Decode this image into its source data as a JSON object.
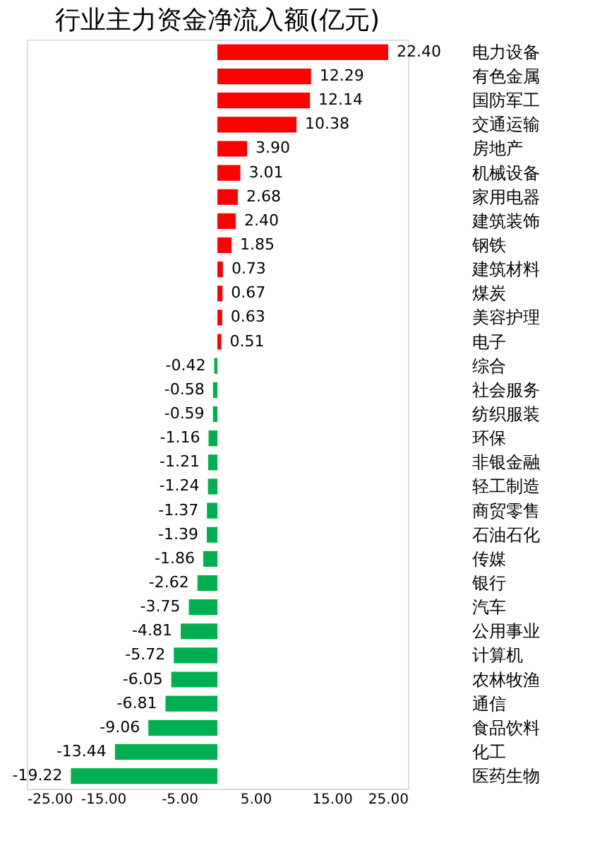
{
  "chart_data": {
    "type": "bar",
    "orientation": "horizontal",
    "title": "行业主力资金净流入额(亿元)",
    "categories": [
      "电力设备",
      "有色金属",
      "国防军工",
      "交通运输",
      "房地产",
      "机械设备",
      "家用电器",
      "建筑装饰",
      "钢铁",
      "建筑材料",
      "煤炭",
      "美容护理",
      "电子",
      "综合",
      "社会服务",
      "纺织服装",
      "环保",
      "非银金融",
      "轻工制造",
      "商贸零售",
      "石油石化",
      "传媒",
      "银行",
      "汽车",
      "公用事业",
      "计算机",
      "农林牧渔",
      "通信",
      "食品饮料",
      "化工",
      "医药生物"
    ],
    "values": [
      22.4,
      12.29,
      12.14,
      10.38,
      3.9,
      3.01,
      2.68,
      2.4,
      1.85,
      0.73,
      0.67,
      0.63,
      0.51,
      -0.42,
      -0.58,
      -0.59,
      -1.16,
      -1.21,
      -1.24,
      -1.37,
      -1.39,
      -1.86,
      -2.62,
      -3.75,
      -4.81,
      -5.72,
      -6.05,
      -6.81,
      -9.06,
      -13.44,
      -19.22
    ],
    "colors": [
      "#ff0000",
      "#ff0000",
      "#ff0000",
      "#ff0000",
      "#ff0000",
      "#ff0000",
      "#ff0000",
      "#ff0000",
      "#ff0000",
      "#ff0000",
      "#ff0000",
      "#ff0000",
      "#ff0000",
      "#00b050",
      "#00b050",
      "#00b050",
      "#00b050",
      "#00b050",
      "#00b050",
      "#00b050",
      "#00b050",
      "#00b050",
      "#00b050",
      "#00b050",
      "#00b050",
      "#00b050",
      "#00b050",
      "#00b050",
      "#00b050",
      "#00b050",
      "#00b050"
    ],
    "xlim": [
      -25,
      25
    ],
    "xticks": [
      {
        "value": -25,
        "label": "-25.00"
      },
      {
        "value": -15,
        "label": "-15.00"
      },
      {
        "value": -5,
        "label": "-5.00"
      },
      {
        "value": 5,
        "label": "5.00"
      },
      {
        "value": 15,
        "label": "15.00"
      },
      {
        "value": 25,
        "label": "25.00"
      }
    ],
    "value_labels": [
      "22.40",
      "12.29",
      "12.14",
      "10.38",
      "3.90",
      "3.01",
      "2.68",
      "2.40",
      "1.85",
      "0.73",
      "0.67",
      "0.63",
      "0.51",
      "-0.42",
      "-0.58",
      "-0.59",
      "-1.16",
      "-1.21",
      "-1.24",
      "-1.37",
      "-1.39",
      "-1.86",
      "-2.62",
      "-3.75",
      "-4.81",
      "-5.72",
      "-6.05",
      "-6.81",
      "-9.06",
      "-13.44",
      "-19.22"
    ],
    "grid": false
  }
}
